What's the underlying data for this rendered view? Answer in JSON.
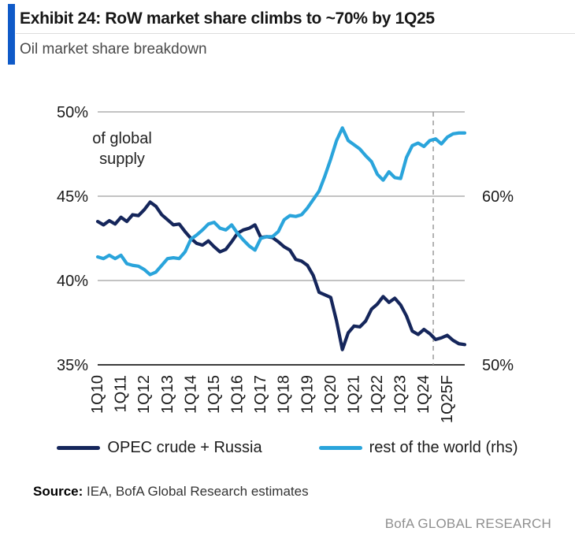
{
  "colors": {
    "accent_bar": "#0F5AC8",
    "opec_navy": "#15265B",
    "row_blue": "#2AA4DB"
  },
  "chart_data": {
    "type": "line",
    "title": "Exhibit 24: RoW market share climbs to ~70% by 1Q25",
    "subtitle": "Oil market share breakdown",
    "annotation": "of global\nsupply",
    "x_start": "1Q10",
    "x_end": "4Q25",
    "x_frequency": "quarterly",
    "x_tick_labels": [
      "1Q10",
      "1Q11",
      "1Q12",
      "1Q13",
      "1Q14",
      "1Q15",
      "1Q16",
      "1Q17",
      "1Q18",
      "1Q19",
      "1Q20",
      "1Q21",
      "1Q22",
      "1Q23",
      "1Q24",
      "1Q25F"
    ],
    "left_axis": {
      "min": 35,
      "max": 50,
      "ticks": [
        {
          "label": "50%",
          "value": 50
        },
        {
          "label": "45%",
          "value": 45
        },
        {
          "label": "40%",
          "value": 40
        },
        {
          "label": "35%",
          "value": 35
        }
      ]
    },
    "right_axis": {
      "min": 50,
      "max": 65,
      "ticks": [
        {
          "label": "60%",
          "value": 60
        },
        {
          "label": "50%",
          "value": 50
        }
      ]
    },
    "grid": "horizontal",
    "legend_position": "bottom",
    "forecast_divider_index": 57.6,
    "series": [
      {
        "name": "OPEC crude + Russia",
        "axis": "left",
        "color": "#15265B",
        "values": [
          43.5,
          43.3,
          43.55,
          43.35,
          43.75,
          43.5,
          43.9,
          43.85,
          44.2,
          44.65,
          44.4,
          43.9,
          43.6,
          43.3,
          43.35,
          42.9,
          42.5,
          42.2,
          42.1,
          42.35,
          42.0,
          41.7,
          41.85,
          42.3,
          42.8,
          43.0,
          43.1,
          43.3,
          42.55,
          42.6,
          42.55,
          42.3,
          42.0,
          41.8,
          41.25,
          41.15,
          40.9,
          40.3,
          39.3,
          39.15,
          39.0,
          37.6,
          35.9,
          36.9,
          37.3,
          37.25,
          37.6,
          38.3,
          38.6,
          39.05,
          38.7,
          38.95,
          38.55,
          37.9,
          37.0,
          36.8,
          37.1,
          36.85,
          36.5,
          36.6,
          36.75,
          36.45,
          36.25,
          36.2
        ]
      },
      {
        "name": "rest of the world (rhs)",
        "axis": "right",
        "color": "#2AA4DB",
        "values": [
          56.4,
          56.3,
          56.5,
          56.3,
          56.5,
          56.0,
          55.9,
          55.85,
          55.65,
          55.35,
          55.5,
          55.9,
          56.3,
          56.35,
          56.3,
          56.7,
          57.45,
          57.7,
          58.0,
          58.35,
          58.45,
          58.1,
          58.0,
          58.3,
          57.8,
          57.4,
          57.05,
          56.8,
          57.5,
          57.6,
          57.6,
          57.9,
          58.6,
          58.85,
          58.8,
          58.9,
          59.3,
          59.8,
          60.3,
          61.2,
          62.2,
          63.3,
          64.05,
          63.3,
          63.05,
          62.8,
          62.4,
          62.05,
          61.3,
          60.95,
          61.45,
          61.1,
          61.05,
          62.3,
          63.0,
          63.15,
          62.95,
          63.3,
          63.4,
          63.1,
          63.5,
          63.7,
          63.75,
          63.75
        ]
      }
    ]
  },
  "source": {
    "label": "Source:",
    "text": " IEA, BofA Global Research estimates"
  },
  "footer": {
    "brand": "BofA GLOBAL RESEARCH"
  }
}
